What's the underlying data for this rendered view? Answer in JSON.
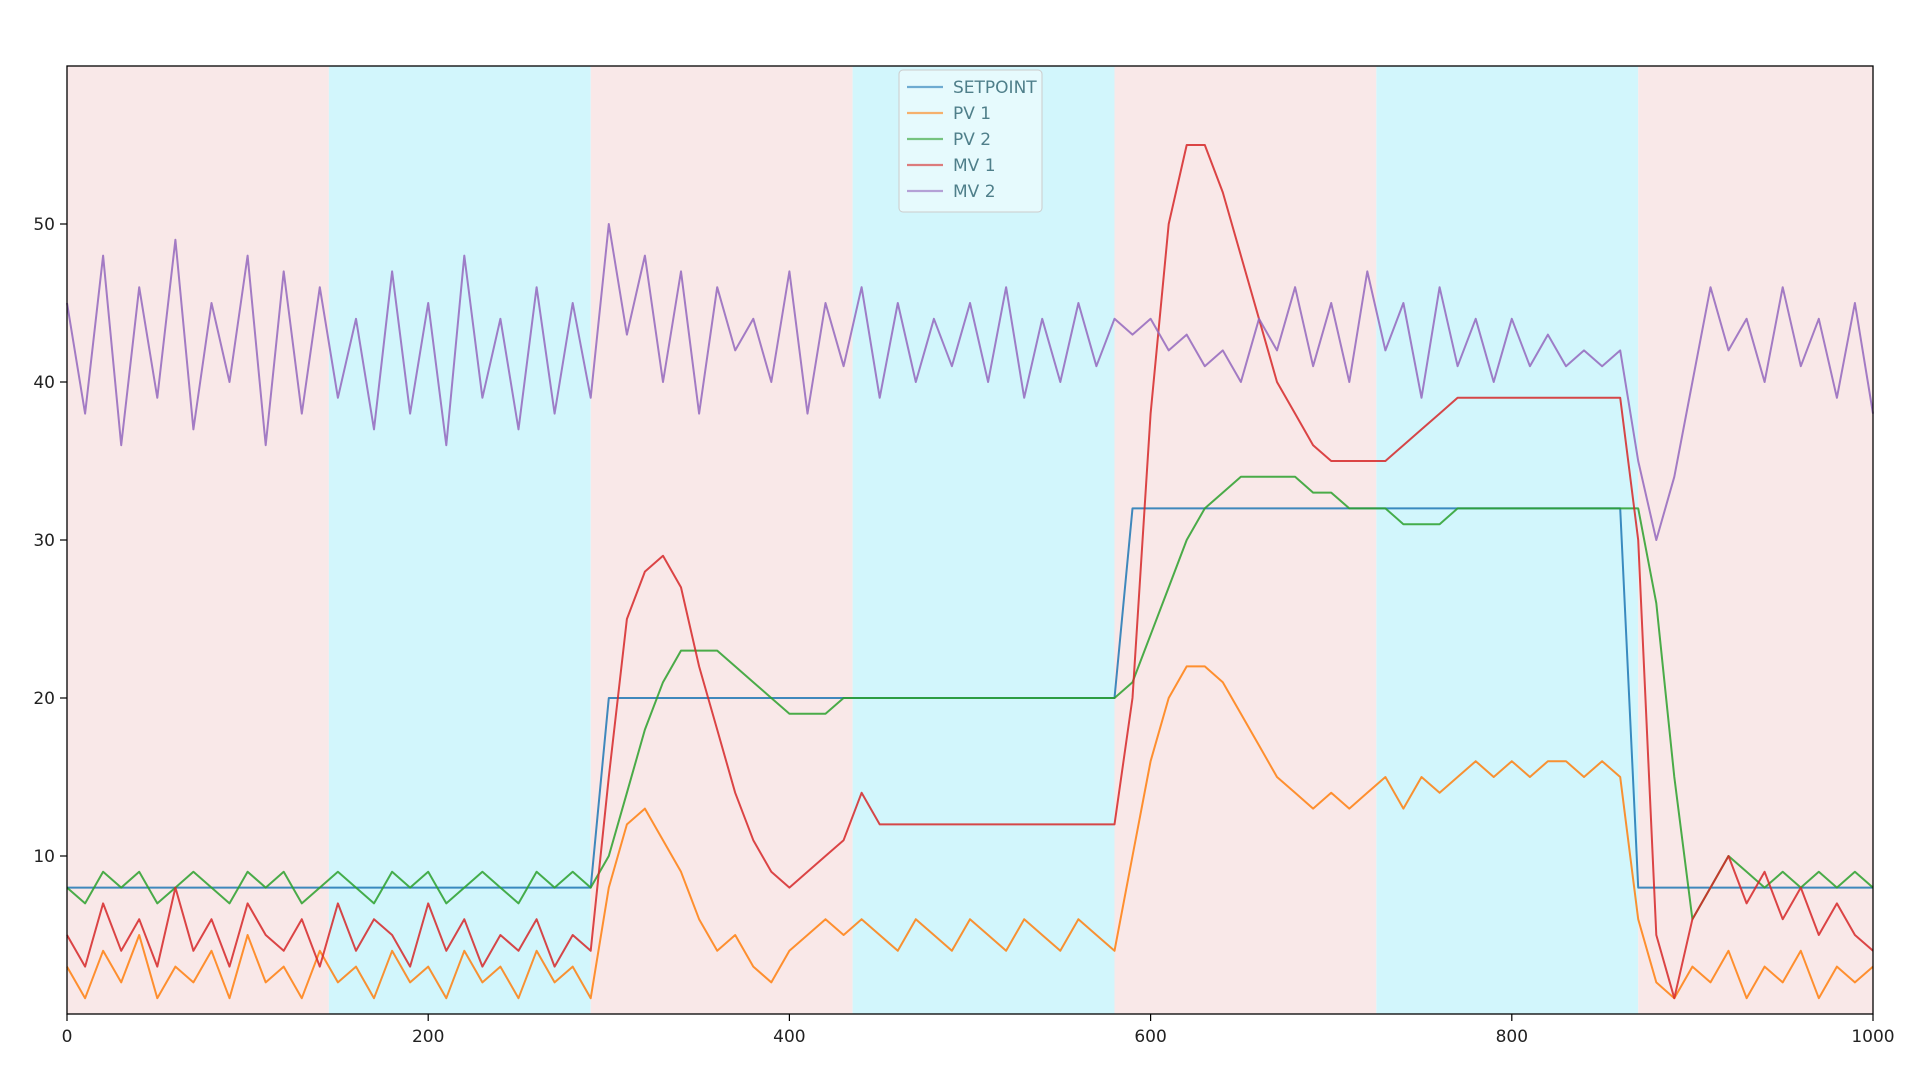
{
  "chart_data": {
    "type": "line",
    "title": "",
    "xlabel": "",
    "ylabel": "",
    "xlim": [
      0,
      1000
    ],
    "ylim": [
      0,
      60
    ],
    "xticks": [
      0,
      200,
      400,
      600,
      800,
      1000
    ],
    "yticks": [
      10,
      20,
      30,
      40,
      50
    ],
    "grid": false,
    "legend_position": "top-center",
    "x": [
      0,
      10,
      20,
      30,
      40,
      50,
      60,
      70,
      80,
      90,
      100,
      110,
      120,
      130,
      140,
      150,
      160,
      170,
      180,
      190,
      200,
      210,
      220,
      230,
      240,
      250,
      260,
      270,
      280,
      290,
      300,
      310,
      320,
      330,
      340,
      350,
      360,
      370,
      380,
      390,
      400,
      410,
      420,
      430,
      440,
      450,
      460,
      470,
      480,
      490,
      500,
      510,
      520,
      530,
      540,
      550,
      560,
      570,
      580,
      590,
      600,
      610,
      620,
      630,
      640,
      650,
      660,
      670,
      680,
      690,
      700,
      710,
      720,
      730,
      740,
      750,
      760,
      770,
      780,
      790,
      800,
      810,
      820,
      830,
      840,
      850,
      860,
      870,
      880,
      890,
      900,
      910,
      920,
      930,
      940,
      950,
      960,
      970,
      980,
      990,
      1000
    ],
    "series": [
      {
        "name": "SETPOINT",
        "color": "#1f77b4",
        "values": [
          8,
          8,
          8,
          8,
          8,
          8,
          8,
          8,
          8,
          8,
          8,
          8,
          8,
          8,
          8,
          8,
          8,
          8,
          8,
          8,
          8,
          8,
          8,
          8,
          8,
          8,
          8,
          8,
          8,
          8,
          20,
          20,
          20,
          20,
          20,
          20,
          20,
          20,
          20,
          20,
          20,
          20,
          20,
          20,
          20,
          20,
          20,
          20,
          20,
          20,
          20,
          20,
          20,
          20,
          20,
          20,
          20,
          20,
          20,
          32,
          32,
          32,
          32,
          32,
          32,
          32,
          32,
          32,
          32,
          32,
          32,
          32,
          32,
          32,
          32,
          32,
          32,
          32,
          32,
          32,
          32,
          32,
          32,
          32,
          32,
          32,
          32,
          8,
          8,
          8,
          8,
          8,
          8,
          8,
          8,
          8,
          8,
          8,
          8,
          8,
          8
        ]
      },
      {
        "name": "PV 1",
        "color": "#ff7f0e",
        "values": [
          3,
          1,
          4,
          2,
          5,
          1,
          3,
          2,
          4,
          1,
          5,
          2,
          3,
          1,
          4,
          2,
          3,
          1,
          4,
          2,
          3,
          1,
          4,
          2,
          3,
          1,
          4,
          2,
          3,
          1,
          8,
          12,
          13,
          11,
          9,
          6,
          4,
          5,
          3,
          2,
          4,
          5,
          6,
          5,
          6,
          5,
          4,
          6,
          5,
          4,
          6,
          5,
          4,
          6,
          5,
          4,
          6,
          5,
          4,
          10,
          16,
          20,
          22,
          22,
          21,
          19,
          17,
          15,
          14,
          13,
          14,
          13,
          14,
          15,
          13,
          15,
          14,
          15,
          16,
          15,
          16,
          15,
          16,
          16,
          15,
          16,
          15,
          6,
          2,
          1,
          3,
          2,
          4,
          1,
          3,
          2,
          4,
          1,
          3,
          2,
          3
        ]
      },
      {
        "name": "PV 2",
        "color": "#2ca02c",
        "values": [
          8,
          7,
          9,
          8,
          9,
          7,
          8,
          9,
          8,
          7,
          9,
          8,
          9,
          7,
          8,
          9,
          8,
          7,
          9,
          8,
          9,
          7,
          8,
          9,
          8,
          7,
          9,
          8,
          9,
          8,
          10,
          14,
          18,
          21,
          23,
          23,
          23,
          22,
          21,
          20,
          19,
          19,
          19,
          20,
          20,
          20,
          20,
          20,
          20,
          20,
          20,
          20,
          20,
          20,
          20,
          20,
          20,
          20,
          20,
          21,
          24,
          27,
          30,
          32,
          33,
          34,
          34,
          34,
          34,
          33,
          33,
          32,
          32,
          32,
          31,
          31,
          31,
          32,
          32,
          32,
          32,
          32,
          32,
          32,
          32,
          32,
          32,
          32,
          26,
          15,
          6,
          8,
          10,
          9,
          8,
          9,
          8,
          9,
          8,
          9,
          8
        ]
      },
      {
        "name": "MV 1",
        "color": "#d62728",
        "values": [
          5,
          3,
          7,
          4,
          6,
          3,
          8,
          4,
          6,
          3,
          7,
          5,
          4,
          6,
          3,
          7,
          4,
          6,
          5,
          3,
          7,
          4,
          6,
          3,
          5,
          4,
          6,
          3,
          5,
          4,
          15,
          25,
          28,
          29,
          27,
          22,
          18,
          14,
          11,
          9,
          8,
          9,
          10,
          11,
          14,
          12,
          12,
          12,
          12,
          12,
          12,
          12,
          12,
          12,
          12,
          12,
          12,
          12,
          12,
          20,
          38,
          50,
          55,
          55,
          52,
          48,
          44,
          40,
          38,
          36,
          35,
          35,
          35,
          35,
          36,
          37,
          38,
          39,
          39,
          39,
          39,
          39,
          39,
          39,
          39,
          39,
          39,
          30,
          5,
          1,
          6,
          8,
          10,
          7,
          9,
          6,
          8,
          5,
          7,
          5,
          4
        ]
      },
      {
        "name": "MV 2",
        "color": "#9467bd",
        "values": [
          45,
          38,
          48,
          36,
          46,
          39,
          49,
          37,
          45,
          40,
          48,
          36,
          47,
          38,
          46,
          39,
          44,
          37,
          47,
          38,
          45,
          36,
          48,
          39,
          44,
          37,
          46,
          38,
          45,
          39,
          50,
          43,
          48,
          40,
          47,
          38,
          46,
          42,
          44,
          40,
          47,
          38,
          45,
          41,
          46,
          39,
          45,
          40,
          44,
          41,
          45,
          40,
          46,
          39,
          44,
          40,
          45,
          41,
          44,
          43,
          44,
          42,
          43,
          41,
          42,
          40,
          44,
          42,
          46,
          41,
          45,
          40,
          47,
          42,
          45,
          39,
          46,
          41,
          44,
          40,
          44,
          41,
          43,
          41,
          42,
          41,
          42,
          35,
          30,
          34,
          40,
          46,
          42,
          44,
          40,
          46,
          41,
          44,
          39,
          45,
          38
        ]
      }
    ]
  }
}
